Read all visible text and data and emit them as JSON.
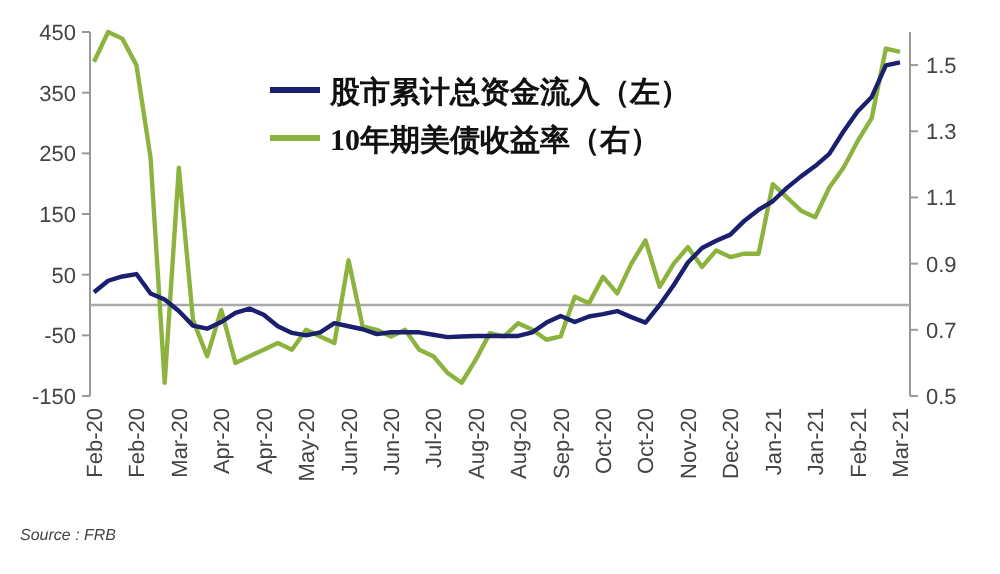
{
  "chart_data": {
    "type": "line",
    "categories": [
      "Feb-20",
      null,
      null,
      "Feb-20",
      null,
      null,
      "Mar-20",
      null,
      null,
      "Apr-20",
      null,
      null,
      "Apr-20",
      null,
      null,
      "May-20",
      null,
      null,
      "Jun-20",
      null,
      null,
      "Jun-20",
      null,
      null,
      "Jul-20",
      null,
      null,
      "Aug-20",
      null,
      null,
      "Aug-20",
      null,
      null,
      "Sep-20",
      null,
      null,
      "Oct-20",
      null,
      null,
      "Oct-20",
      null,
      null,
      "Nov-20",
      null,
      null,
      "Dec-20",
      null,
      null,
      "Jan-21",
      null,
      null,
      "Jan-21",
      null,
      null,
      "Feb-21",
      null,
      null,
      "Mar-21"
    ],
    "series": [
      {
        "name": "股市累计总资金流入（左）",
        "color": "#1a1f6e",
        "values": [
          21,
          40,
          47,
          51,
          19,
          9,
          -10,
          -34,
          -39,
          -28,
          -13,
          -6,
          -16,
          -35,
          -46,
          -50,
          -45,
          -30,
          -35,
          -40,
          -48,
          -45,
          -45,
          -45,
          -49,
          -53,
          -52,
          -51,
          -51,
          -51,
          -51,
          -45,
          -29,
          -18,
          -28,
          -19,
          -15,
          -10,
          -20,
          -29,
          0,
          33,
          70,
          94,
          106,
          116,
          139,
          157,
          171,
          193,
          212,
          229,
          249,
          286,
          319,
          343,
          395,
          400
        ]
      },
      {
        "name": "10年期美债收益率（右）",
        "color": "#8db33f",
        "axis": "y2",
        "values": [
          1.51,
          1.6,
          1.58,
          1.5,
          1.22,
          0.54,
          1.19,
          0.73,
          0.62,
          0.76,
          0.6,
          0.62,
          0.64,
          0.66,
          0.64,
          0.7,
          0.68,
          0.66,
          0.91,
          0.71,
          0.7,
          0.68,
          0.7,
          0.64,
          0.62,
          0.57,
          0.54,
          0.61,
          0.69,
          0.68,
          0.72,
          0.7,
          0.67,
          0.68,
          0.8,
          0.78,
          0.86,
          0.81,
          0.9,
          0.97,
          0.83,
          0.9,
          0.95,
          0.89,
          0.94,
          0.92,
          0.93,
          0.93,
          1.14,
          1.1,
          1.06,
          1.04,
          1.13,
          1.19,
          1.27,
          1.34,
          1.55,
          1.54
        ]
      }
    ],
    "ylim": [
      -150,
      450
    ],
    "yticks": [
      -150,
      -50,
      50,
      150,
      250,
      350,
      450
    ],
    "y2lim": [
      0.5,
      1.6
    ],
    "y2ticks": [
      0.5,
      0.7,
      0.9,
      1.1,
      1.3,
      1.5
    ],
    "ref_lines": [
      {
        "axis": "y",
        "value": 0,
        "color": "#aaaaaa"
      }
    ],
    "legend": "top",
    "grid": false,
    "annotations": [
      "Source : FRB"
    ]
  }
}
